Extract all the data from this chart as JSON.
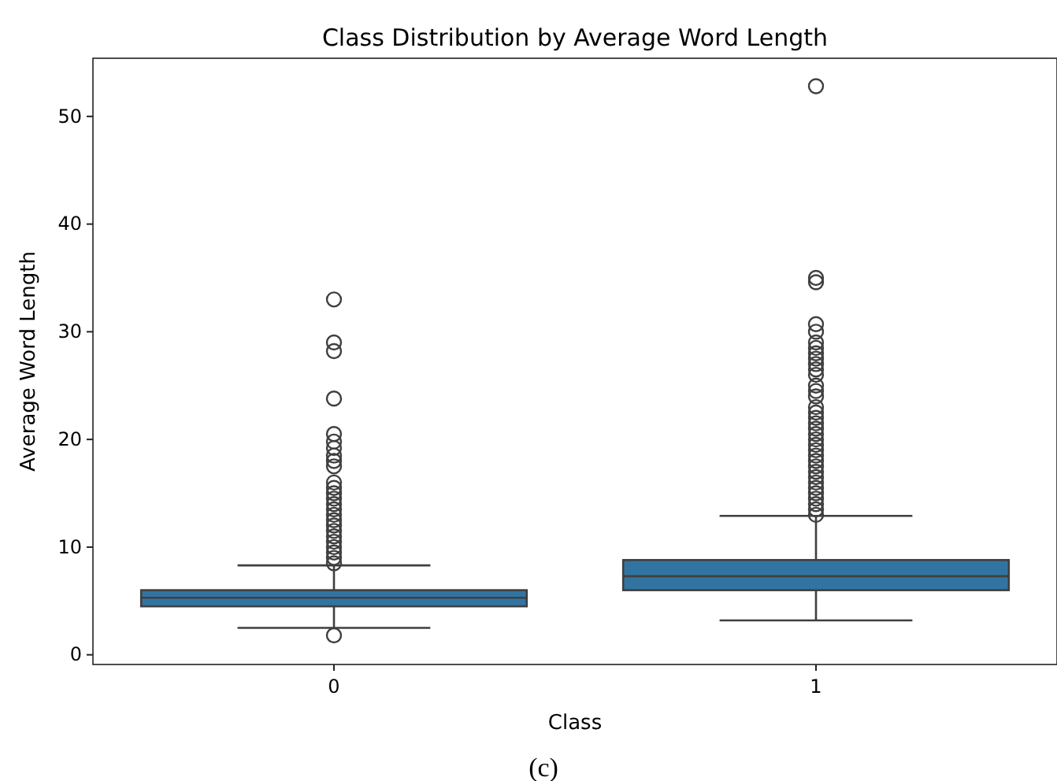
{
  "chart_data": {
    "type": "box",
    "title": "Class Distribution by Average Word Length",
    "xlabel": "Class",
    "ylabel": "Average Word Length",
    "categories": [
      "0",
      "1"
    ],
    "ylim": [
      -0.9,
      55.4
    ],
    "yticks": [
      0,
      10,
      20,
      30,
      40,
      50
    ],
    "grid": false,
    "marker": "circle",
    "series": [
      {
        "color": "#3274a1",
        "boxes": [
          {
            "low": 2.5,
            "q1": 4.5,
            "median": 5.3,
            "q3": 6.0,
            "high": 8.3,
            "outliers": [
              1.8,
              8.5,
              9,
              9.5,
              10,
              10.5,
              11,
              11.5,
              12,
              12.5,
              13,
              13.5,
              14,
              14.5,
              15,
              15.5,
              16,
              17.5,
              18,
              18.5,
              19.2,
              19.8,
              20.5,
              23.8,
              28.2,
              29,
              33
            ]
          },
          {
            "low": 3.2,
            "q1": 6.0,
            "median": 7.3,
            "q3": 8.8,
            "high": 12.9,
            "outliers": [
              13,
              13.5,
              14,
              14.5,
              15,
              15.5,
              16,
              16.5,
              17,
              17.5,
              18,
              18.5,
              19,
              19.5,
              20,
              20.5,
              21,
              21.5,
              22,
              22.5,
              23,
              24,
              24.5,
              25,
              26,
              26.5,
              27,
              27.5,
              28,
              28.5,
              29,
              30,
              30.7,
              34.6,
              35,
              52.8
            ]
          }
        ]
      }
    ],
    "annotations": [
      "(c)"
    ]
  }
}
